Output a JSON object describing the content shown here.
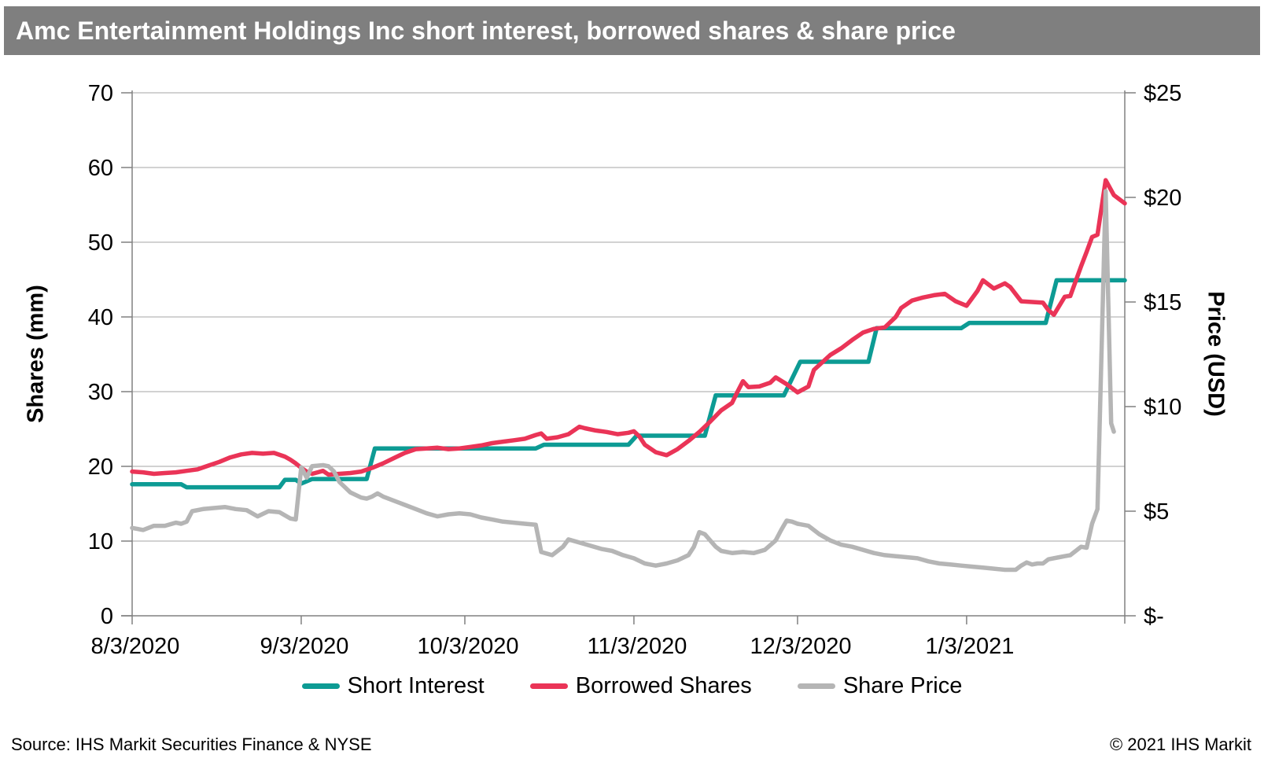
{
  "title": "Amc Entertainment Holdings Inc short interest, borrowed shares & share price",
  "footer": {
    "source": "Source: IHS Markit Securities Finance & NYSE",
    "copyright": "© 2021 IHS Markit"
  },
  "colors": {
    "title_bar": "#7f7f7f",
    "short_interest": "#0d9b94",
    "borrowed_shares": "#ea3457",
    "share_price": "#b5b5b5",
    "grid": "#a6a6a6",
    "axis": "#808080",
    "tick_text": "#000000"
  },
  "legend": [
    {
      "label": "Short Interest",
      "series_key": "short_interest"
    },
    {
      "label": "Borrowed Shares",
      "series_key": "borrowed_shares"
    },
    {
      "label": "Share Price",
      "series_key": "share_price"
    }
  ],
  "chart_data": {
    "type": "line",
    "title": "Amc Entertainment Holdings Inc short interest, borrowed shares & share price",
    "grid": "horizontal-only",
    "legend_position": "bottom",
    "x_axis": {
      "start_date": "8/3/2020",
      "end_day": 182,
      "tick_days": [
        0,
        31,
        61,
        92,
        122,
        153
      ],
      "tick_labels": [
        "8/3/2020",
        "9/3/2020",
        "10/3/2020",
        "11/3/2020",
        "12/3/2020",
        "1/3/2021"
      ]
    },
    "y_left": {
      "label": "Shares (mm)",
      "range": [
        0,
        70
      ],
      "ticks": [
        0,
        10,
        20,
        30,
        40,
        50,
        60,
        70
      ],
      "tick_labels": [
        "0",
        "10",
        "20",
        "30",
        "40",
        "50",
        "60",
        "70"
      ]
    },
    "y_right": {
      "label": "Price (USD)",
      "range": [
        0,
        25
      ],
      "ticks": [
        0,
        5,
        10,
        15,
        20,
        25
      ],
      "tick_labels": [
        "$-",
        "$5",
        "$10",
        "$15",
        "$20",
        "$25"
      ]
    },
    "series": [
      {
        "name": "Short Interest",
        "key": "short_interest",
        "axis": "left",
        "unit": "mm shares",
        "color": "#0d9b94",
        "points": [
          [
            0,
            17.6
          ],
          [
            9,
            17.6
          ],
          [
            10,
            17.2
          ],
          [
            27,
            17.2
          ],
          [
            28,
            18.2
          ],
          [
            30,
            18.2
          ],
          [
            31,
            17.7
          ],
          [
            33,
            18.3
          ],
          [
            43,
            18.3
          ],
          [
            44.5,
            22.4
          ],
          [
            74,
            22.4
          ],
          [
            75.5,
            22.9
          ],
          [
            91,
            22.9
          ],
          [
            92.5,
            24.1
          ],
          [
            105,
            24.1
          ],
          [
            107,
            29.5
          ],
          [
            119.5,
            29.5
          ],
          [
            122.5,
            34.0
          ],
          [
            135,
            34.0
          ],
          [
            136.5,
            38.5
          ],
          [
            152,
            38.5
          ],
          [
            153.5,
            39.2
          ],
          [
            167.5,
            39.2
          ],
          [
            169.5,
            44.9
          ],
          [
            182,
            44.9
          ]
        ]
      },
      {
        "name": "Borrowed Shares",
        "key": "borrowed_shares",
        "axis": "left",
        "unit": "mm shares",
        "color": "#ea3457",
        "points": [
          [
            0,
            19.3
          ],
          [
            2,
            19.2
          ],
          [
            4,
            19.0
          ],
          [
            6,
            19.1
          ],
          [
            8,
            19.2
          ],
          [
            10,
            19.4
          ],
          [
            12,
            19.6
          ],
          [
            14,
            20.1
          ],
          [
            16,
            20.6
          ],
          [
            18,
            21.2
          ],
          [
            20,
            21.6
          ],
          [
            22,
            21.8
          ],
          [
            24,
            21.7
          ],
          [
            26,
            21.8
          ],
          [
            28,
            21.3
          ],
          [
            29,
            20.9
          ],
          [
            30,
            20.4
          ],
          [
            31,
            19.8
          ],
          [
            32,
            19.3
          ],
          [
            33,
            19.0
          ],
          [
            34,
            19.2
          ],
          [
            35,
            19.4
          ],
          [
            36,
            18.9
          ],
          [
            38,
            19.0
          ],
          [
            40,
            19.1
          ],
          [
            42,
            19.3
          ],
          [
            44,
            19.8
          ],
          [
            46,
            20.4
          ],
          [
            48,
            21.1
          ],
          [
            50,
            21.8
          ],
          [
            52,
            22.3
          ],
          [
            54,
            22.4
          ],
          [
            56,
            22.5
          ],
          [
            58,
            22.3
          ],
          [
            60,
            22.4
          ],
          [
            62,
            22.6
          ],
          [
            64,
            22.8
          ],
          [
            66,
            23.1
          ],
          [
            68,
            23.3
          ],
          [
            70,
            23.5
          ],
          [
            72,
            23.7
          ],
          [
            74,
            24.2
          ],
          [
            75,
            24.4
          ],
          [
            76,
            23.7
          ],
          [
            78,
            23.9
          ],
          [
            80,
            24.3
          ],
          [
            82,
            25.3
          ],
          [
            83,
            25.1
          ],
          [
            85,
            24.8
          ],
          [
            87,
            24.6
          ],
          [
            89,
            24.3
          ],
          [
            91,
            24.5
          ],
          [
            92,
            24.7
          ],
          [
            93,
            24.0
          ],
          [
            94,
            22.9
          ],
          [
            96,
            21.9
          ],
          [
            98,
            21.5
          ],
          [
            100,
            22.3
          ],
          [
            102,
            23.4
          ],
          [
            104,
            24.6
          ],
          [
            106,
            26.0
          ],
          [
            108,
            27.5
          ],
          [
            110,
            28.5
          ],
          [
            111,
            30.0
          ],
          [
            112,
            31.4
          ],
          [
            113,
            30.6
          ],
          [
            115,
            30.7
          ],
          [
            117,
            31.2
          ],
          [
            118,
            31.9
          ],
          [
            120,
            31.0
          ],
          [
            122,
            29.9
          ],
          [
            124,
            30.7
          ],
          [
            125,
            32.9
          ],
          [
            128,
            34.9
          ],
          [
            130,
            35.8
          ],
          [
            132,
            36.9
          ],
          [
            134,
            37.9
          ],
          [
            136,
            38.4
          ],
          [
            138,
            38.6
          ],
          [
            140,
            40.0
          ],
          [
            141,
            41.2
          ],
          [
            143,
            42.2
          ],
          [
            145,
            42.6
          ],
          [
            147,
            42.9
          ],
          [
            149,
            43.1
          ],
          [
            151,
            42.1
          ],
          [
            153,
            41.5
          ],
          [
            155,
            43.5
          ],
          [
            156,
            44.9
          ],
          [
            158,
            43.8
          ],
          [
            160,
            44.5
          ],
          [
            161,
            44.0
          ],
          [
            163,
            42.1
          ],
          [
            165,
            42.0
          ],
          [
            167,
            41.9
          ],
          [
            168,
            40.9
          ],
          [
            169,
            40.3
          ],
          [
            171,
            42.7
          ],
          [
            172,
            42.8
          ],
          [
            174,
            46.8
          ],
          [
            175,
            48.7
          ],
          [
            176,
            50.7
          ],
          [
            177,
            51.0
          ],
          [
            178.5,
            58.3
          ],
          [
            180,
            56.3
          ],
          [
            182,
            55.2
          ]
        ]
      },
      {
        "name": "Share Price",
        "key": "share_price",
        "axis": "right",
        "unit": "USD",
        "color": "#b5b5b5",
        "points": [
          [
            0,
            4.2
          ],
          [
            1,
            4.15
          ],
          [
            2,
            4.1
          ],
          [
            4,
            4.3
          ],
          [
            6,
            4.3
          ],
          [
            8,
            4.45
          ],
          [
            9,
            4.4
          ],
          [
            10,
            4.5
          ],
          [
            11,
            5.0
          ],
          [
            13,
            5.1
          ],
          [
            15,
            5.15
          ],
          [
            17,
            5.2
          ],
          [
            19,
            5.1
          ],
          [
            21,
            5.05
          ],
          [
            23,
            4.75
          ],
          [
            25,
            5.0
          ],
          [
            27,
            4.95
          ],
          [
            29,
            4.65
          ],
          [
            30,
            4.6
          ],
          [
            31,
            7.1
          ],
          [
            32,
            6.6
          ],
          [
            33,
            7.15
          ],
          [
            35,
            7.2
          ],
          [
            36,
            7.15
          ],
          [
            37,
            6.9
          ],
          [
            38,
            6.4
          ],
          [
            40,
            5.9
          ],
          [
            42,
            5.65
          ],
          [
            43,
            5.6
          ],
          [
            44,
            5.7
          ],
          [
            45,
            5.85
          ],
          [
            46,
            5.7
          ],
          [
            48,
            5.5
          ],
          [
            50,
            5.3
          ],
          [
            52,
            5.1
          ],
          [
            54,
            4.9
          ],
          [
            56,
            4.75
          ],
          [
            58,
            4.85
          ],
          [
            60,
            4.9
          ],
          [
            62,
            4.85
          ],
          [
            64,
            4.7
          ],
          [
            66,
            4.6
          ],
          [
            68,
            4.5
          ],
          [
            70,
            4.45
          ],
          [
            72,
            4.4
          ],
          [
            74,
            4.35
          ],
          [
            75,
            3.05
          ],
          [
            77,
            2.9
          ],
          [
            79,
            3.3
          ],
          [
            80,
            3.65
          ],
          [
            82,
            3.5
          ],
          [
            84,
            3.35
          ],
          [
            86,
            3.2
          ],
          [
            88,
            3.1
          ],
          [
            90,
            2.9
          ],
          [
            92,
            2.75
          ],
          [
            94,
            2.5
          ],
          [
            96,
            2.4
          ],
          [
            98,
            2.5
          ],
          [
            100,
            2.65
          ],
          [
            102,
            2.9
          ],
          [
            103,
            3.3
          ],
          [
            104,
            4.0
          ],
          [
            105,
            3.9
          ],
          [
            107,
            3.3
          ],
          [
            108,
            3.1
          ],
          [
            110,
            3.0
          ],
          [
            112,
            3.05
          ],
          [
            114,
            3.0
          ],
          [
            116,
            3.15
          ],
          [
            118,
            3.6
          ],
          [
            119,
            4.1
          ],
          [
            120,
            4.55
          ],
          [
            121,
            4.5
          ],
          [
            122,
            4.4
          ],
          [
            124,
            4.3
          ],
          [
            126,
            3.9
          ],
          [
            128,
            3.6
          ],
          [
            130,
            3.4
          ],
          [
            132,
            3.3
          ],
          [
            134,
            3.15
          ],
          [
            136,
            3.0
          ],
          [
            138,
            2.9
          ],
          [
            140,
            2.85
          ],
          [
            142,
            2.8
          ],
          [
            144,
            2.75
          ],
          [
            146,
            2.6
          ],
          [
            148,
            2.5
          ],
          [
            150,
            2.45
          ],
          [
            152,
            2.4
          ],
          [
            154,
            2.35
          ],
          [
            156,
            2.3
          ],
          [
            158,
            2.25
          ],
          [
            160,
            2.2
          ],
          [
            162,
            2.2
          ],
          [
            163,
            2.4
          ],
          [
            164,
            2.55
          ],
          [
            165,
            2.45
          ],
          [
            166,
            2.5
          ],
          [
            167,
            2.5
          ],
          [
            168,
            2.7
          ],
          [
            170,
            2.8
          ],
          [
            171,
            2.85
          ],
          [
            172,
            2.9
          ],
          [
            174,
            3.3
          ],
          [
            175,
            3.25
          ],
          [
            176,
            4.4
          ],
          [
            177,
            5.1
          ],
          [
            178.5,
            20.3
          ],
          [
            179.5,
            9.2
          ],
          [
            180,
            8.8
          ]
        ]
      }
    ]
  }
}
